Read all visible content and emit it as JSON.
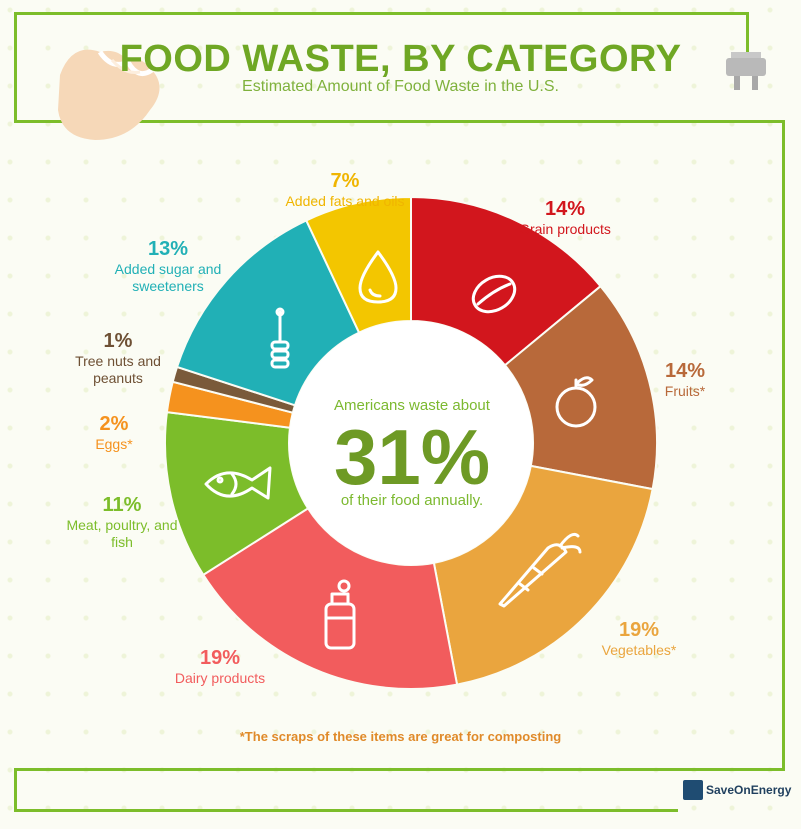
{
  "header": {
    "title": "FOOD WASTE, BY CATEGORY",
    "subtitle": "Estimated Amount of Food Waste in the U.S."
  },
  "center": {
    "top": "Americans waste about",
    "big": "31%",
    "bottom": "of their food annually."
  },
  "footnote": "*The scraps of these items are great for composting",
  "brand": "SaveOnEnergy",
  "chart_data": {
    "type": "pie",
    "title": "FOOD WASTE, BY CATEGORY",
    "subtitle": "Estimated Amount of Food Waste in the U.S.",
    "slices": [
      {
        "pct_label": "14%",
        "label": "Grain products",
        "value": 14,
        "color": "#d2161d"
      },
      {
        "pct_label": "14%",
        "label": "Fruits*",
        "value": 14,
        "color": "#b8693a"
      },
      {
        "pct_label": "19%",
        "label": "Vegetables*",
        "value": 19,
        "color": "#eaa53e"
      },
      {
        "pct_label": "19%",
        "label": "Dairy products",
        "value": 19,
        "color": "#f25c5d"
      },
      {
        "pct_label": "11%",
        "label": "Meat, poultry, and fish",
        "value": 11,
        "color": "#7cbd2a"
      },
      {
        "pct_label": "2%",
        "label": "Eggs*",
        "value": 2,
        "color": "#f5921e"
      },
      {
        "pct_label": "1%",
        "label": "Tree nuts and peanuts",
        "value": 1,
        "color": "#7a5a3a"
      },
      {
        "pct_label": "13%",
        "label": "Added sugar and sweeteners",
        "value": 13,
        "color": "#21b0b6"
      },
      {
        "pct_label": "7%",
        "label": "Added fats and oils",
        "value": 7,
        "color": "#f3c600"
      }
    ]
  }
}
